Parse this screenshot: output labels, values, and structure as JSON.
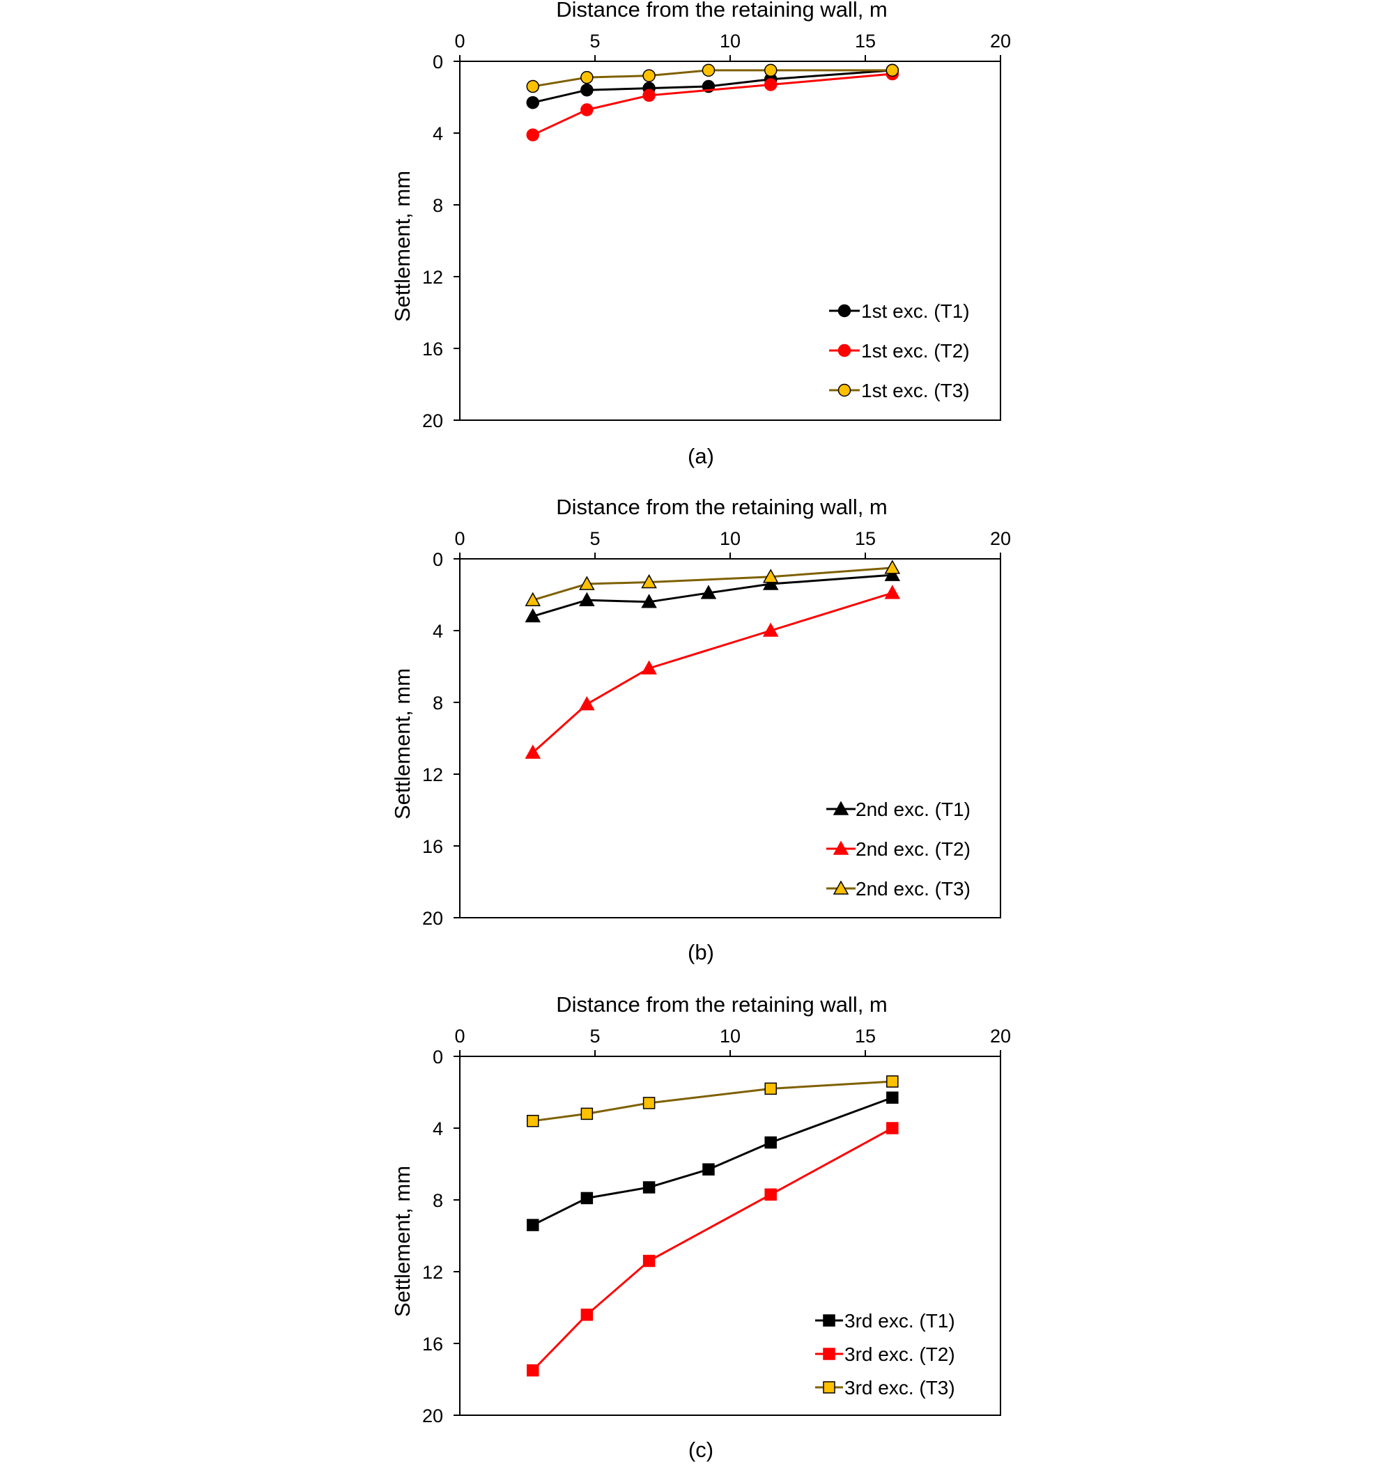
{
  "chart_data": [
    {
      "type": "line",
      "xlabel": "Distance from the retaining wall, m",
      "ylabel": "Settlement, mm",
      "caption": "(a)",
      "xlim": [
        0,
        20
      ],
      "ylim": [
        0,
        20
      ],
      "x_ticks": [
        "0",
        "5",
        "10",
        "15",
        "20"
      ],
      "y_ticks": [
        "0",
        "4",
        "8",
        "12",
        "16",
        "20"
      ],
      "y_inverted": true,
      "x_axis_position": "top",
      "grid": false,
      "legend_position": "bottom-right",
      "series": [
        {
          "name": "1st exc. (T1)",
          "marker": "circle",
          "color": "#000000",
          "fill": "#000000",
          "x": [
            2.7,
            4.7,
            7.0,
            9.2,
            11.5,
            16.0
          ],
          "y": [
            2.3,
            1.6,
            1.5,
            1.4,
            1.0,
            0.5
          ]
        },
        {
          "name": "1st exc. (T2)",
          "marker": "circle",
          "color": "#ff0000",
          "fill": "#ff0000",
          "x": [
            2.7,
            4.7,
            7.0,
            11.5,
            16.0
          ],
          "y": [
            4.1,
            2.7,
            1.9,
            1.3,
            0.7
          ]
        },
        {
          "name": "1st exc. (T3)",
          "marker": "circle",
          "color": "#7f6000",
          "fill": "#ffc000",
          "x": [
            2.7,
            4.7,
            7.0,
            9.2,
            11.5,
            16.0
          ],
          "y": [
            1.4,
            0.9,
            0.8,
            0.5,
            0.5,
            0.5
          ]
        }
      ]
    },
    {
      "type": "line",
      "xlabel": "Distance from the retaining wall, m",
      "ylabel": "Settlement, mm",
      "caption": "(b)",
      "xlim": [
        0,
        20
      ],
      "ylim": [
        0,
        20
      ],
      "x_ticks": [
        "0",
        "5",
        "10",
        "15",
        "20"
      ],
      "y_ticks": [
        "0",
        "4",
        "8",
        "12",
        "16",
        "20"
      ],
      "y_inverted": true,
      "x_axis_position": "top",
      "grid": false,
      "legend_position": "bottom-right",
      "series": [
        {
          "name": "2nd exc. (T1)",
          "marker": "triangle",
          "color": "#000000",
          "fill": "#000000",
          "x": [
            2.7,
            4.7,
            7.0,
            9.2,
            11.5,
            16.0
          ],
          "y": [
            3.2,
            2.3,
            2.4,
            1.9,
            1.4,
            0.9
          ]
        },
        {
          "name": "2nd exc. (T2)",
          "marker": "triangle",
          "color": "#ff0000",
          "fill": "#ff0000",
          "x": [
            2.7,
            4.7,
            7.0,
            11.5,
            16.0
          ],
          "y": [
            10.8,
            8.1,
            6.1,
            4.0,
            1.9
          ]
        },
        {
          "name": "2nd exc. (T3)",
          "marker": "triangle",
          "color": "#7f6000",
          "fill": "#ffc000",
          "x": [
            2.7,
            4.7,
            7.0,
            11.5,
            16.0
          ],
          "y": [
            2.3,
            1.4,
            1.3,
            1.0,
            0.5
          ]
        }
      ]
    },
    {
      "type": "line",
      "xlabel": "Distance from the retaining wall, m",
      "ylabel": "Settlement, mm",
      "caption": "(c)",
      "xlim": [
        0,
        20
      ],
      "ylim": [
        0,
        20
      ],
      "x_ticks": [
        "0",
        "5",
        "10",
        "15",
        "20"
      ],
      "y_ticks": [
        "0",
        "4",
        "8",
        "12",
        "16",
        "20"
      ],
      "y_inverted": true,
      "x_axis_position": "top",
      "grid": false,
      "legend_position": "bottom-right",
      "series": [
        {
          "name": "3rd exc. (T1)",
          "marker": "square",
          "color": "#000000",
          "fill": "#000000",
          "x": [
            2.7,
            4.7,
            7.0,
            9.2,
            11.5,
            16.0
          ],
          "y": [
            9.4,
            7.9,
            7.3,
            6.3,
            4.8,
            2.3
          ]
        },
        {
          "name": "3rd exc. (T2)",
          "marker": "square",
          "color": "#ff0000",
          "fill": "#ff0000",
          "x": [
            2.7,
            4.7,
            7.0,
            11.5,
            16.0
          ],
          "y": [
            17.5,
            14.4,
            11.4,
            7.7,
            4.0
          ]
        },
        {
          "name": "3rd exc. (T3)",
          "marker": "square",
          "color": "#7f6000",
          "fill": "#ffc000",
          "x": [
            2.7,
            4.7,
            7.0,
            11.5,
            16.0
          ],
          "y": [
            3.6,
            3.2,
            2.6,
            1.8,
            1.4
          ]
        }
      ]
    }
  ]
}
